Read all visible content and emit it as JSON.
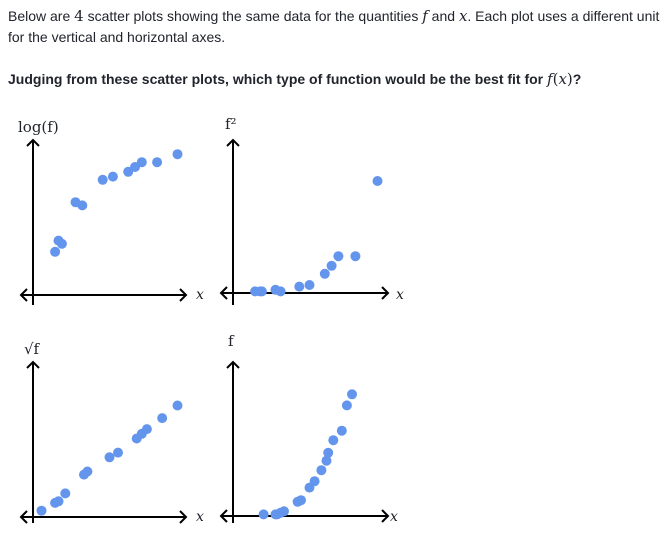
{
  "intro": {
    "part1": "Below are ",
    "count": "4",
    "part2": " scatter plots showing the same data for the quantities ",
    "var_f": "f",
    "part3": " and ",
    "var_x": "x",
    "part4": ". Each plot uses a different unit for the vertical and horizontal axes."
  },
  "question": {
    "text": "Judging from these scatter plots, which type of function would be the best fit for ",
    "fn": "f",
    "open": "(",
    "arg": "x",
    "close": ")",
    "end": "?"
  },
  "colors": {
    "point": "#6495ED",
    "axis": "#000000"
  },
  "chart_data": [
    {
      "type": "scatter",
      "ylabel": "log(f)",
      "xlabel": "x",
      "points": [
        [
          0.13,
          0.27
        ],
        [
          0.15,
          0.34
        ],
        [
          0.17,
          0.32
        ],
        [
          0.25,
          0.58
        ],
        [
          0.29,
          0.56
        ],
        [
          0.41,
          0.72
        ],
        [
          0.47,
          0.74
        ],
        [
          0.56,
          0.77
        ],
        [
          0.6,
          0.8
        ],
        [
          0.64,
          0.83
        ],
        [
          0.73,
          0.83
        ],
        [
          0.85,
          0.88
        ]
      ]
    },
    {
      "type": "scatter",
      "ylabel": "f²",
      "xlabel": "x",
      "points": [
        [
          0.13,
          0.01
        ],
        [
          0.16,
          0.01
        ],
        [
          0.17,
          0.01
        ],
        [
          0.25,
          0.02
        ],
        [
          0.28,
          0.01
        ],
        [
          0.39,
          0.04
        ],
        [
          0.45,
          0.05
        ],
        [
          0.54,
          0.12
        ],
        [
          0.58,
          0.17
        ],
        [
          0.62,
          0.23
        ],
        [
          0.72,
          0.23
        ],
        [
          0.85,
          0.7
        ]
      ]
    },
    {
      "type": "scatter",
      "ylabel": "√f",
      "xlabel": "x",
      "points": [
        [
          0.05,
          0.04
        ],
        [
          0.13,
          0.09
        ],
        [
          0.15,
          0.1
        ],
        [
          0.19,
          0.15
        ],
        [
          0.3,
          0.27
        ],
        [
          0.32,
          0.29
        ],
        [
          0.45,
          0.38
        ],
        [
          0.5,
          0.41
        ],
        [
          0.61,
          0.5
        ],
        [
          0.64,
          0.53
        ],
        [
          0.67,
          0.56
        ],
        [
          0.76,
          0.63
        ],
        [
          0.85,
          0.71
        ]
      ]
    },
    {
      "type": "scatter",
      "ylabel": "f",
      "xlabel": "x",
      "points": [
        [
          0.18,
          0.01
        ],
        [
          0.25,
          0.01
        ],
        [
          0.26,
          0.01
        ],
        [
          0.28,
          0.02
        ],
        [
          0.3,
          0.03
        ],
        [
          0.38,
          0.09
        ],
        [
          0.4,
          0.1
        ],
        [
          0.45,
          0.18
        ],
        [
          0.48,
          0.22
        ],
        [
          0.52,
          0.29
        ],
        [
          0.55,
          0.35
        ],
        [
          0.56,
          0.4
        ],
        [
          0.59,
          0.48
        ],
        [
          0.64,
          0.54
        ],
        [
          0.67,
          0.7
        ],
        [
          0.7,
          0.77
        ]
      ]
    }
  ]
}
